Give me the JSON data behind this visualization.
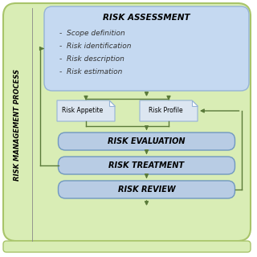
{
  "bg_rect_color": "#d9edb5",
  "bg_rect_edge": "#a8c46a",
  "side_label": "RISK MANAGEMENT PROCESS",
  "ra_title": "RISK ASSESSMENT",
  "ra_bullets": [
    "Scope definition",
    "Risk identification",
    "Risk description",
    "Risk estimation"
  ],
  "ra_box_color": "#c5d9f1",
  "ra_box_edge": "#95b3d7",
  "appetite_label": "Risk Appetite",
  "profile_label": "Risk Profile",
  "note_color": "#dce6f1",
  "note_edge": "#95b3d7",
  "eval_label": "RISK EVALUATION",
  "treat_label": "RISK TREATMENT",
  "review_label": "RISK REVIEW",
  "flow_box_color": "#b8cce4",
  "flow_box_edge": "#7098c0",
  "arrow_color": "#5a7a3a",
  "bottom_bar_color": "#d9edb5",
  "bottom_bar_edge": "#a8c46a"
}
